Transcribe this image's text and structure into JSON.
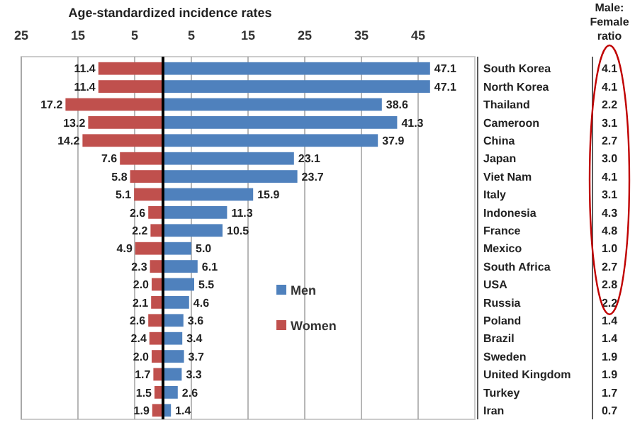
{
  "chart_data": {
    "type": "bar",
    "orientation": "horizontal",
    "title": "Age-standardized incidence rates",
    "categories": [
      "South Korea",
      "North Korea",
      "Thailand",
      "Cameroon",
      "China",
      "Japan",
      "Viet Nam",
      "Italy",
      "Indonesia",
      "France",
      "Mexico",
      "South Africa",
      "USA",
      "Russia",
      "Poland",
      "Brazil",
      "Sweden",
      "United Kingdom",
      "Turkey",
      "Iran"
    ],
    "series": [
      {
        "name": "Women",
        "color": "#c0504d",
        "values": [
          11.4,
          11.4,
          17.2,
          13.2,
          14.2,
          7.6,
          5.8,
          5.1,
          2.6,
          2.2,
          4.9,
          2.3,
          2.0,
          2.1,
          2.6,
          2.4,
          2.0,
          1.7,
          1.5,
          1.9
        ],
        "base": [
          -11.4,
          -11.4,
          -17.2,
          -13.2,
          -14.2,
          -7.6,
          -5.8,
          -5.1,
          -2.6,
          -2.2,
          -4.9,
          -2.3,
          -2.0,
          -2.1,
          -2.6,
          -2.4,
          -2.0,
          -1.7,
          -1.5,
          -1.9
        ],
        "value_labels": [
          "11.4",
          "11.4",
          "17.2",
          "13.2",
          "14.2",
          "7.6",
          "5.8",
          "5.1",
          "2.6",
          "2.2",
          "4.9",
          "2.3",
          "2.0",
          "2.1",
          "2.6",
          "2.4",
          "2.0",
          "1.7",
          "1.5",
          "1.9"
        ]
      },
      {
        "name": "Men",
        "color": "#4f81bd",
        "values": [
          47.1,
          47.1,
          38.6,
          41.3,
          37.9,
          23.1,
          23.7,
          15.9,
          11.3,
          10.5,
          5.0,
          6.1,
          5.5,
          4.6,
          3.6,
          3.4,
          3.7,
          3.3,
          2.6,
          1.4
        ],
        "value_labels": [
          "47.1",
          "47.1",
          "38.6",
          "41.3",
          "37.9",
          "23.1",
          "23.7",
          "15.9",
          "11.3",
          "10.5",
          "5.0",
          "6.1",
          "5.5",
          "4.6",
          "3.6",
          "3.4",
          "3.7",
          "3.3",
          "2.6",
          "1.4"
        ]
      }
    ],
    "xlim": [
      -25,
      55
    ],
    "xticks": [
      {
        "value": -25,
        "label": "25"
      },
      {
        "value": -15,
        "label": "15"
      },
      {
        "value": -5,
        "label": "5"
      },
      5,
      15,
      25,
      35,
      45
    ],
    "grid": "x",
    "legend": "right",
    "annotations": [
      "Male: Female ratio",
      "4.1",
      "4.1",
      "2.2",
      "3.1",
      "2.7",
      "3.0",
      "4.1",
      "3.1",
      "4.3",
      "4.8",
      "1.0",
      "2.7",
      "2.8",
      "2.2",
      "1.4",
      "1.4",
      "1.9",
      "1.9",
      "1.7",
      "0.7"
    ]
  }
}
